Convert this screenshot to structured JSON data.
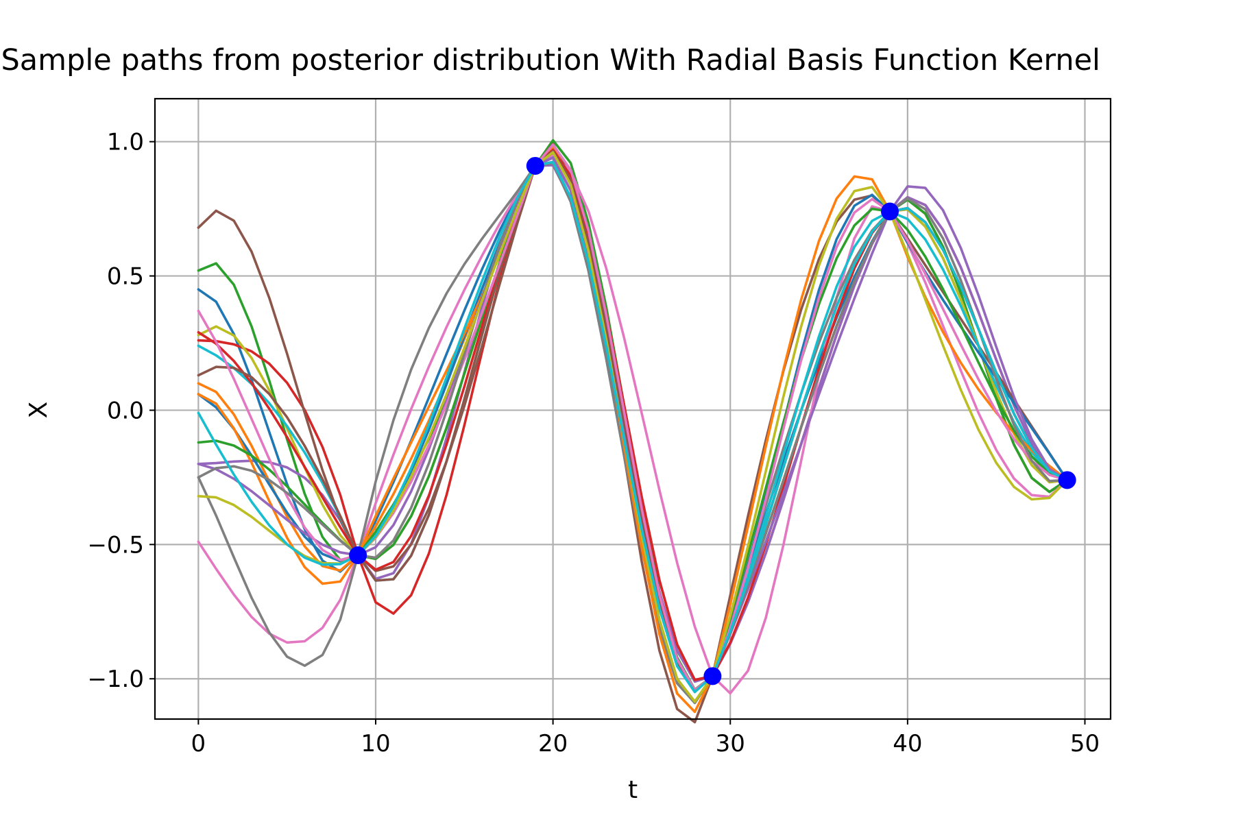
{
  "chart_data": {
    "type": "line",
    "title": "Sample paths from posterior distribution With Radial Basis Function Kernel",
    "xlabel": "t",
    "ylabel": "X",
    "xlim": [
      -2.45,
      51.45
    ],
    "ylim": [
      -1.15,
      1.16
    ],
    "xticks": [
      0,
      10,
      20,
      30,
      40,
      50
    ],
    "yticks": [
      1.0,
      0.5,
      0.0,
      -0.5,
      -1.0
    ],
    "ytick_labels": [
      "1.0",
      "0.5",
      "0.0",
      "−0.5",
      "−1.0"
    ],
    "grid": true,
    "legend": "none",
    "x": [
      0,
      9,
      19,
      29,
      39,
      49
    ],
    "series": [
      {
        "color": "#1f77b4",
        "values": [
          0.45,
          -0.54,
          0.91,
          -0.99,
          0.74,
          -0.26
        ],
        "v0": [
          0.0,
          1.2,
          1.0,
          2.0,
          1.0,
          1.0
        ]
      },
      {
        "color": "#ff7f0e",
        "values": [
          0.1,
          -0.54,
          0.91,
          -0.99,
          0.74,
          -0.26
        ],
        "v0": [
          0.0,
          1.0,
          1.6,
          1.5,
          1.0,
          1.0
        ]
      },
      {
        "color": "#2ca02c",
        "values": [
          0.52,
          -0.54,
          0.91,
          -0.99,
          0.74,
          -0.26
        ],
        "v0": [
          0.9,
          0.8,
          2.0,
          1.5,
          1.0,
          1.0
        ]
      },
      {
        "color": "#d62728",
        "values": [
          0.26,
          -0.54,
          0.91,
          -0.99,
          0.74,
          -0.26
        ],
        "v0": [
          0.0,
          -2.5,
          1.5,
          1.0,
          1.0,
          0.0
        ]
      },
      {
        "color": "#9467bd",
        "values": [
          -0.2,
          -0.54,
          0.91,
          -0.99,
          0.74,
          -0.26
        ],
        "v0": [
          0.0,
          -1.5,
          0.8,
          1.0,
          1.0,
          0.0
        ]
      },
      {
        "color": "#8c564b",
        "values": [
          0.68,
          -0.54,
          0.91,
          -0.99,
          0.74,
          -0.26
        ],
        "v0": [
          1.2,
          -1.0,
          2.0,
          3.0,
          -1.0,
          -1.0
        ]
      },
      {
        "color": "#e377c2",
        "values": [
          -0.49,
          -0.54,
          0.91,
          -0.99,
          0.74,
          -0.26
        ],
        "v0": [
          -1.0,
          2.0,
          1.0,
          -1.5,
          -1.0,
          1.0
        ]
      },
      {
        "color": "#7f7f7f",
        "values": [
          -0.25,
          -0.54,
          0.91,
          -0.99,
          0.74,
          -0.26
        ],
        "v0": [
          -1.3,
          3.0,
          1.0,
          2.0,
          0.5,
          0.5
        ]
      },
      {
        "color": "#bcbd22",
        "values": [
          0.28,
          -0.54,
          0.91,
          -0.99,
          0.74,
          -0.26
        ],
        "v0": [
          0.7,
          -0.5,
          1.5,
          1.5,
          0.5,
          0.5
        ]
      },
      {
        "color": "#17becf",
        "values": [
          0.24,
          -0.54,
          0.91,
          -0.99,
          0.74,
          -0.26
        ],
        "v0": [
          -0.3,
          -1.5,
          1.5,
          1.5,
          0.0,
          0.0
        ]
      },
      {
        "color": "#1f77b4",
        "values": [
          0.06,
          -0.54,
          0.91,
          -0.99,
          0.74,
          -0.26
        ],
        "v0": [
          -0.3,
          0.5,
          1.2,
          1.5,
          -1.2,
          -1.0
        ]
      },
      {
        "color": "#ff7f0e",
        "values": [
          0.06,
          -0.54,
          0.91,
          -0.99,
          0.74,
          -0.26
        ],
        "v0": [
          0.0,
          1.5,
          1.8,
          2.5,
          -1.8,
          -0.5
        ]
      },
      {
        "color": "#2ca02c",
        "values": [
          -0.12,
          -0.54,
          0.91,
          -0.99,
          0.74,
          -0.26
        ],
        "v0": [
          0.2,
          -0.5,
          1.5,
          2.0,
          -0.5,
          0.0
        ]
      },
      {
        "color": "#d62728",
        "values": [
          0.29,
          -0.54,
          0.91,
          -0.99,
          0.74,
          -0.26
        ],
        "v0": [
          -0.3,
          -1.0,
          1.5,
          1.0,
          0.5,
          0.0
        ]
      },
      {
        "color": "#9467bd",
        "values": [
          -0.2,
          -0.54,
          0.91,
          -0.99,
          0.74,
          -0.26
        ],
        "v0": [
          -0.1,
          0.0,
          1.2,
          1.5,
          1.5,
          0.0
        ]
      },
      {
        "color": "#8c564b",
        "values": [
          0.13,
          -0.54,
          0.91,
          -0.99,
          0.74,
          -0.26
        ],
        "v0": [
          0.5,
          -1.5,
          1.5,
          1.5,
          0.5,
          0.0
        ]
      },
      {
        "color": "#e377c2",
        "values": [
          0.37,
          -0.54,
          0.91,
          -0.99,
          0.74,
          -0.26
        ],
        "v0": [
          -1.0,
          0.5,
          1.8,
          1.5,
          -1.0,
          0.0
        ]
      },
      {
        "color": "#7f7f7f",
        "values": [
          -0.25,
          -0.54,
          0.91,
          -0.99,
          0.74,
          -0.26
        ],
        "v0": [
          0.5,
          -0.5,
          1.0,
          1.5,
          1.0,
          0.5
        ]
      },
      {
        "color": "#bcbd22",
        "values": [
          -0.32,
          -0.54,
          0.91,
          -0.99,
          0.74,
          -0.26
        ],
        "v0": [
          0.1,
          0.5,
          1.5,
          2.0,
          -1.5,
          1.0
        ]
      },
      {
        "color": "#17becf",
        "values": [
          -0.01,
          -0.54,
          0.91,
          -0.99,
          0.74,
          -0.26
        ],
        "v0": [
          -1.2,
          0.5,
          1.0,
          1.5,
          0.5,
          0.0
        ]
      }
    ],
    "observations": {
      "x": [
        9,
        19,
        29,
        39,
        49
      ],
      "y": [
        -0.54,
        0.91,
        -0.99,
        0.74,
        -0.26
      ],
      "color": "#0000ff"
    }
  }
}
